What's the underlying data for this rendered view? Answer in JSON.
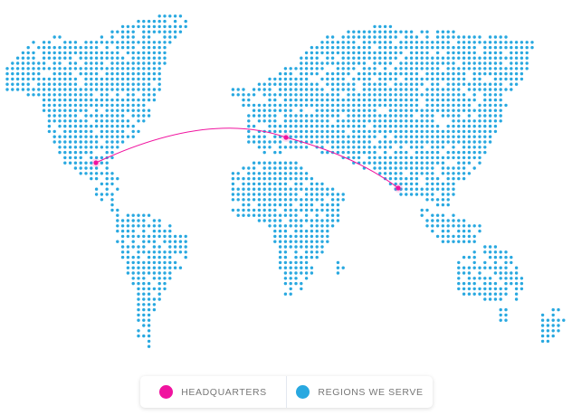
{
  "colors": {
    "headquarters": "#f0139f",
    "regions": "#28a8e0"
  },
  "legend": {
    "headquarters_label": "HEADQUARTERS",
    "regions_label": "REGIONS WE SERVE"
  }
}
